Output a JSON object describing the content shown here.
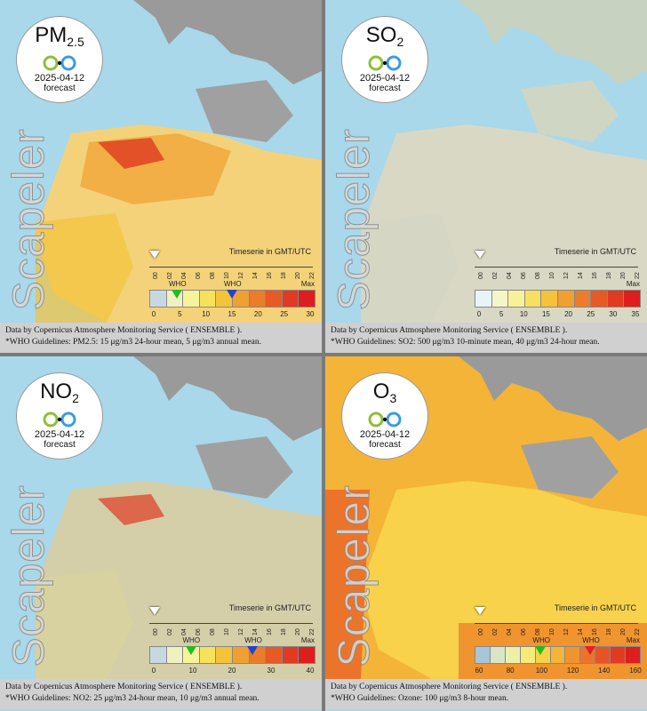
{
  "brand": "Scapeler",
  "timeserie_note": "Timeserie in GMT/UTC",
  "timeline_ticks": [
    "00",
    "02",
    "04",
    "06",
    "08",
    "10",
    "12",
    "14",
    "16",
    "18",
    "20",
    "22"
  ],
  "panels": [
    {
      "pollutant": "PM",
      "pollutant_sub": "2.5",
      "date": "2025-04-12",
      "forecast": "forecast",
      "who_label": "WHO",
      "max_label": "Max",
      "scale_ticks": [
        "0",
        "5",
        "10",
        "15",
        "20",
        "25",
        "30"
      ],
      "who_markers": [
        {
          "value": 5,
          "color": "#22bb22"
        },
        {
          "value": 15,
          "color": "#2244cc"
        }
      ],
      "scale_colors": [
        "#c8d8e0",
        "#f0f0c0",
        "#f6f39a",
        "#f7e15a",
        "#f4c33a",
        "#f0a030",
        "#ec7c2a",
        "#e65a26",
        "#e03a22",
        "#dc1e1e"
      ],
      "caption_line1": "Data by Copernicus Atmosphere Monitoring Service ( ENSEMBLE ).",
      "caption_line2": "*WHO Guidelines: PM2.5: 15 μg/m3 24-hour mean, 5 μg/m3 annual mean."
    },
    {
      "pollutant": "SO",
      "pollutant_sub": "2",
      "date": "2025-04-12",
      "forecast": "forecast",
      "who_label": "",
      "max_label": "Max",
      "scale_ticks": [
        "0",
        "5",
        "10",
        "15",
        "20",
        "25",
        "30",
        "35"
      ],
      "who_markers": [],
      "scale_colors": [
        "#e8f4f8",
        "#f4f6c8",
        "#f7f29a",
        "#f7e060",
        "#f4c23c",
        "#f0a030",
        "#ec7c2a",
        "#e65a26",
        "#e03a22",
        "#dc1e1e"
      ],
      "caption_line1": "Data by Copernicus Atmosphere Monitoring Service ( ENSEMBLE ).",
      "caption_line2": "*WHO Guidelines: SO2: 500 μg/m3 10-minute mean, 40 μg/m3 24-hour mean."
    },
    {
      "pollutant": "NO",
      "pollutant_sub": "2",
      "date": "2025-04-12",
      "forecast": "forecast",
      "who_label": "WHO",
      "max_label": "Max",
      "scale_ticks": [
        "0",
        "10",
        "20",
        "30",
        "40"
      ],
      "who_markers": [
        {
          "value": 10,
          "color": "#22bb22"
        },
        {
          "value": 25,
          "color": "#2244cc"
        }
      ],
      "scale_colors": [
        "#c8d8e0",
        "#f0f0c0",
        "#f6f39a",
        "#f7e15a",
        "#f4c33a",
        "#f0a030",
        "#ec7c2a",
        "#e65a26",
        "#e03a22",
        "#dc1e1e"
      ],
      "caption_line1": "Data by Copernicus Atmosphere Monitoring Service ( ENSEMBLE ).",
      "caption_line2": "*WHO Guidelines: NO2: 25 μg/m3 24-hour mean, 10 μg/m3 annual mean."
    },
    {
      "pollutant": "O",
      "pollutant_sub": "3",
      "date": "2025-04-12",
      "forecast": "forecast",
      "who_label": "WHO",
      "max_label": "Max",
      "scale_ticks": [
        "60",
        "80",
        "100",
        "120",
        "140",
        "160"
      ],
      "who_markers": [
        {
          "value": 100,
          "color": "#22bb22"
        },
        {
          "value": 130,
          "color": "#dd2222"
        }
      ],
      "scale_colors": [
        "#a9c6d8",
        "#d8e6c8",
        "#eef0a8",
        "#f6ea78",
        "#f7d24a",
        "#f4b438",
        "#f09430",
        "#ec742a",
        "#e65426",
        "#e03a22",
        "#dc1e1e"
      ],
      "caption_line1": "Data by Copernicus Atmosphere Monitoring Service ( ENSEMBLE ).",
      "caption_line2": "*WHO Guidelines: Ozone: 100 μg/m3 8-hour mean."
    }
  ]
}
